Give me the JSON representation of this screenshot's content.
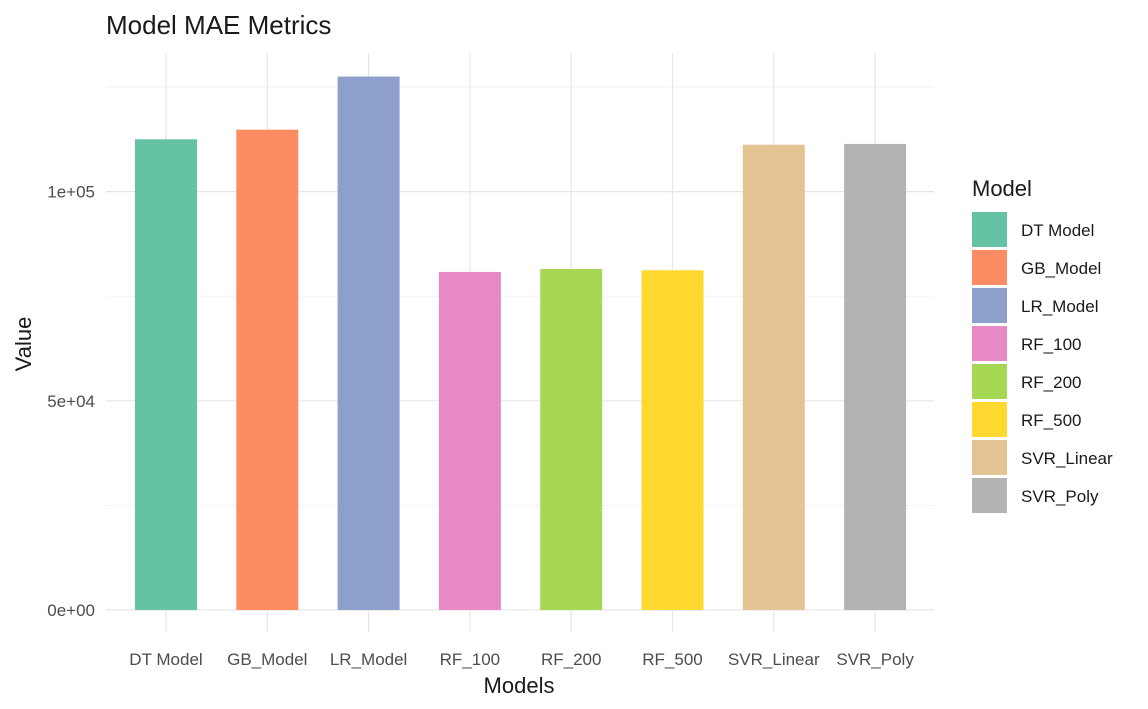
{
  "chart_data": {
    "type": "bar",
    "title": "Model MAE Metrics",
    "xlabel": "Models",
    "ylabel": "Value",
    "categories": [
      "DT Model",
      "GB_Model",
      "LR_Model",
      "RF_100",
      "RF_200",
      "RF_500",
      "SVR_Linear",
      "SVR_Poly"
    ],
    "values": [
      112500,
      114800,
      127500,
      80800,
      81500,
      81200,
      111200,
      111400
    ],
    "colors": [
      "#66c2a5",
      "#fc8d62",
      "#8da0cb",
      "#e78ac3",
      "#a6d854",
      "#ffd92f",
      "#e5c494",
      "#b3b3b3"
    ],
    "yticks": [
      0,
      50000,
      100000
    ],
    "ytick_labels": [
      "0e+00",
      "5e+04",
      "1e+05"
    ],
    "ylim": [
      0,
      133000
    ],
    "grid": true,
    "legend": {
      "title": "Model",
      "position": "right",
      "entries": [
        "DT Model",
        "GB_Model",
        "LR_Model",
        "RF_100",
        "RF_200",
        "RF_500",
        "SVR_Linear",
        "SVR_Poly"
      ]
    }
  }
}
